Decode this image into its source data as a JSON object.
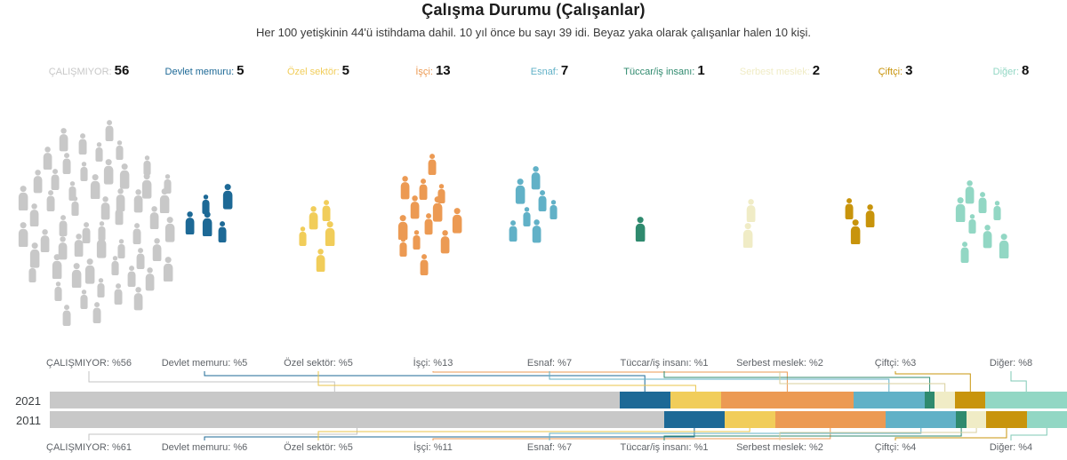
{
  "title": "Çalışma Durumu (Çalışanlar)",
  "subtitle": "Her 100 yetişkinin 44'ü istihdama dahil. 10 yıl önce bu sayı 39 idi. Beyaz yaka olarak çalışanlar halen 10 kişi.",
  "years": [
    "2021",
    "2011"
  ],
  "categories": [
    {
      "label": "ÇALIŞMIYOR",
      "legend_label": "ÇALIŞMIYOR:",
      "legend_value": "56",
      "people": 56,
      "pct_2021": 56,
      "pct_2011": 61,
      "color": "#c8c8c8",
      "line_color": "#c3c3c3",
      "bar_label_2021": "ÇALIŞMIYOR: %56",
      "bar_label_2011": "ÇALIŞMIYOR: %61"
    },
    {
      "label": "Devlet memuru",
      "legend_label": "Devlet memuru:",
      "legend_value": "5",
      "people": 5,
      "pct_2021": 5,
      "pct_2011": 6,
      "color": "#1d6996",
      "line_color": "#1d6996",
      "bar_label_2021": "Devlet memuru: %5",
      "bar_label_2011": "Devlet memuru: %6"
    },
    {
      "label": "Özel sektör",
      "legend_label": "Özel sektör:",
      "legend_value": "5",
      "people": 5,
      "pct_2021": 5,
      "pct_2011": 5,
      "color": "#f1cd5a",
      "line_color": "#e8c44a",
      "bar_label_2021": "Özel sektör: %5",
      "bar_label_2011": "Özel sektör: %5"
    },
    {
      "label": "İşçi",
      "legend_label": "İşçi:",
      "legend_value": "13",
      "people": 13,
      "pct_2021": 13,
      "pct_2011": 11,
      "color": "#ec9a53",
      "line_color": "#ec9a53",
      "bar_label_2021": "İşçi: %13",
      "bar_label_2011": "İşçi: %11"
    },
    {
      "label": "Esnaf",
      "legend_label": "Esnaf:",
      "legend_value": "7",
      "people": 7,
      "pct_2021": 7,
      "pct_2011": 7,
      "color": "#61b1c7",
      "line_color": "#61b1c7",
      "bar_label_2021": "Esnaf: %7",
      "bar_label_2011": "Esnaf: %7"
    },
    {
      "label": "Tüccar/iş insanı",
      "legend_label": "Tüccar/iş insanı:",
      "legend_value": "1",
      "people": 1,
      "pct_2021": 1,
      "pct_2011": 1,
      "color": "#2f8a6e",
      "line_color": "#2f8a6e",
      "bar_label_2021": "Tüccar/iş insanı: %1",
      "bar_label_2011": "Tüccar/iş insanı: %1"
    },
    {
      "label": "Serbest meslek",
      "legend_label": "Serbest meslek:",
      "legend_value": "2",
      "people": 2,
      "pct_2021": 2,
      "pct_2011": 2,
      "color": "#f0ecc6",
      "line_color": "#d9cf9c",
      "bar_label_2021": "Serbest meslek: %2",
      "bar_label_2011": "Serbest meslek: %2"
    },
    {
      "label": "Çiftçi",
      "legend_label": "Çiftçi:",
      "legend_value": "3",
      "people": 3,
      "pct_2021": 3,
      "pct_2011": 4,
      "color": "#c8940c",
      "line_color": "#c8940c",
      "bar_label_2021": "Çiftçi: %3",
      "bar_label_2011": "Çiftçi: %4"
    },
    {
      "label": "Diğer",
      "legend_label": "Diğer:",
      "legend_value": "8",
      "people": 8,
      "pct_2021": 8,
      "pct_2011": 4,
      "color": "#92d7c4",
      "line_color": "#7fcab6",
      "bar_label_2021": "Diğer: %8",
      "bar_label_2011": "Diğer: %4"
    }
  ],
  "chart_data": {
    "type": "bar",
    "subtype": "pictogram crowd + horizontal stacked percentage bars",
    "title": "Çalışma Durumu (Çalışanlar)",
    "categories": [
      "ÇALIŞMIYOR",
      "Devlet memuru",
      "Özel sektör",
      "İşçi",
      "Esnaf",
      "Tüccar/iş insanı",
      "Serbest meslek",
      "Çiftçi",
      "Diğer"
    ],
    "series": [
      {
        "name": "2021",
        "values": [
          56,
          5,
          5,
          13,
          7,
          1,
          2,
          3,
          8
        ]
      },
      {
        "name": "2011",
        "values": [
          61,
          6,
          5,
          11,
          7,
          1,
          2,
          4,
          4
        ]
      }
    ],
    "unit": "%",
    "colors": [
      "#c8c8c8",
      "#1d6996",
      "#f1cd5a",
      "#ec9a53",
      "#61b1c7",
      "#2f8a6e",
      "#f0ecc6",
      "#c8940c",
      "#92d7c4"
    ],
    "legend_position": "top",
    "grid": false
  }
}
